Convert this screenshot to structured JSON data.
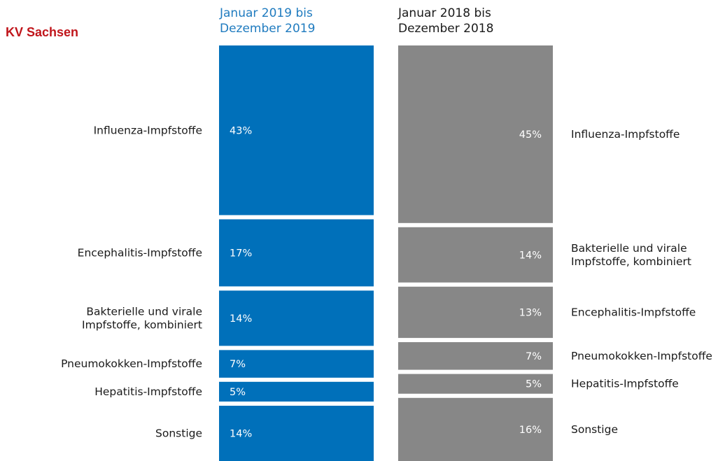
{
  "region": "KV Sachsen",
  "colors": {
    "series_2019": "#0070ba",
    "series_2018": "#878787",
    "region": "#c0151b"
  },
  "chart_data": {
    "type": "stacked-bar",
    "series": [
      {
        "name": "Januar 2019 bis Dezember 2019",
        "head_lines": [
          "Januar 2019 bis",
          "Dezember 2019"
        ],
        "segments": [
          {
            "label": [
              "Influenza-Impfstoffe"
            ],
            "value": 43,
            "value_label": "43%"
          },
          {
            "label": [
              "Encephalitis-Impfstoffe"
            ],
            "value": 17,
            "value_label": "17%"
          },
          {
            "label": [
              "Bakterielle und virale",
              "Impfstoffe, kombiniert"
            ],
            "value": 14,
            "value_label": "14%"
          },
          {
            "label": [
              "Pneumokokken-Impfstoffe"
            ],
            "value": 7,
            "value_label": "7%"
          },
          {
            "label": [
              "Hepatitis-Impfstoffe"
            ],
            "value": 5,
            "value_label": "5%"
          },
          {
            "label": [
              "Sonstige"
            ],
            "value": 14,
            "value_label": "14%"
          }
        ]
      },
      {
        "name": "Januar 2018 bis Dezember 2018",
        "head_lines": [
          "Januar 2018 bis",
          "Dezember 2018"
        ],
        "segments": [
          {
            "label": [
              "Influenza-Impfstoffe"
            ],
            "value": 45,
            "value_label": "45%"
          },
          {
            "label": [
              "Bakterielle und virale",
              "Impfstoffe, kombiniert"
            ],
            "value": 14,
            "value_label": "14%"
          },
          {
            "label": [
              "Encephalitis-Impfstoffe"
            ],
            "value": 13,
            "value_label": "13%"
          },
          {
            "label": [
              "Pneumokokken-Impfstoffe"
            ],
            "value": 7,
            "value_label": "7%"
          },
          {
            "label": [
              "Hepatitis-Impfstoffe"
            ],
            "value": 5,
            "value_label": "5%"
          },
          {
            "label": [
              "Sonstige"
            ],
            "value": 16,
            "value_label": "16%"
          }
        ]
      }
    ]
  }
}
